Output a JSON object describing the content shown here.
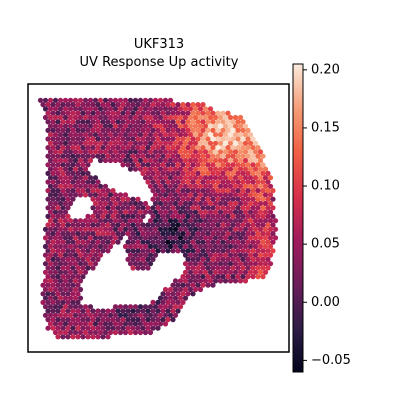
{
  "chart_data": {
    "type": "heatmap",
    "subtype": "spatial-spot-map",
    "title": "UKF313",
    "subtitle": "UV Response Up activity",
    "xlabel": "",
    "ylabel": "",
    "colorbar": {
      "min": -0.06,
      "max": 0.205,
      "ticks": [
        -0.05,
        0.0,
        0.05,
        0.1,
        0.15,
        0.2
      ],
      "tick_labels": [
        "−0.05",
        "0.00",
        "0.05",
        "0.10",
        "0.15",
        "0.20"
      ],
      "colormap": "rocket",
      "colormap_stops": [
        "#03051a",
        "#2f1c48",
        "#6c1d5a",
        "#a11a5b",
        "#d7304a",
        "#f06043",
        "#f59e77",
        "#faebdd"
      ]
    },
    "grid": false,
    "legend": "colorbar-right",
    "regions": [
      {
        "name": "upper-right hotspot",
        "approx_value": 0.17
      },
      {
        "name": "right rim",
        "approx_value": 0.1
      },
      {
        "name": "tissue interior",
        "approx_value": 0.04
      },
      {
        "name": "lower-middle band",
        "approx_value": -0.02
      }
    ]
  }
}
